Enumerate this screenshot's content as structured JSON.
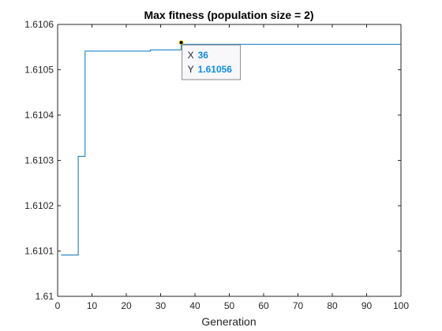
{
  "chart_data": {
    "type": "line",
    "title": "Max fitness (population size = 2)",
    "xlabel": "Generation",
    "ylabel": "",
    "xlim": [
      0,
      100
    ],
    "ylim": [
      1.61,
      1.6106
    ],
    "xticks": [
      0,
      10,
      20,
      30,
      40,
      50,
      60,
      70,
      80,
      90,
      100
    ],
    "xtick_labels": [
      "0",
      "10",
      "20",
      "30",
      "40",
      "50",
      "60",
      "70",
      "80",
      "90",
      "100"
    ],
    "yticks": [
      1.61,
      1.6101,
      1.6102,
      1.6103,
      1.6104,
      1.6105,
      1.6106
    ],
    "ytick_labels": [
      "1.61",
      "1.6101",
      "1.6102",
      "1.6103",
      "1.6104",
      "1.6105",
      "1.6106"
    ],
    "grid": false,
    "line_color": "#0072bd",
    "step": true,
    "series": [
      {
        "x": [
          1,
          2,
          3,
          4,
          5,
          6,
          7,
          8,
          9,
          10,
          15,
          20,
          26,
          27,
          30,
          35,
          36,
          40,
          50,
          60,
          70,
          80,
          90,
          100
        ],
        "y": [
          1.610091,
          1.610091,
          1.610091,
          1.610091,
          1.610091,
          1.610309,
          1.610309,
          1.610541,
          1.610541,
          1.610541,
          1.610541,
          1.610541,
          1.610541,
          1.610544,
          1.610544,
          1.610544,
          1.610556,
          1.610556,
          1.610556,
          1.610556,
          1.610556,
          1.610556,
          1.610556,
          1.610556
        ]
      }
    ],
    "datatip": {
      "x": 36,
      "y": 1.61056,
      "x_prefix": "X",
      "y_prefix": "Y",
      "x_text": "36",
      "y_text": "1.61056",
      "value_color": "#0f8ee6"
    }
  }
}
